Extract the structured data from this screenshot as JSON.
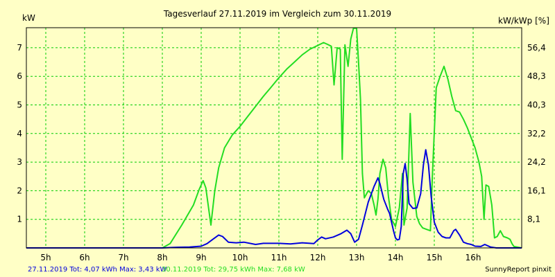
{
  "chart_data": {
    "type": "line",
    "title": "Tagesverlauf 27.11.2019 im Vergleich zum 30.11.2019",
    "ylabel_left": "kW",
    "ylabel_right": "kW/kWp [%]",
    "x_ticks": [
      "5h",
      "6h",
      "7h",
      "8h",
      "9h",
      "10h",
      "11h",
      "12h",
      "13h",
      "14h",
      "15h",
      "16h"
    ],
    "y_left_ticks": [
      "1",
      "2",
      "3",
      "4",
      "5",
      "6",
      "7"
    ],
    "y_right_ticks": [
      "8,1",
      "16,1",
      "24,2",
      "32,2",
      "40,3",
      "48,3",
      "56,4"
    ],
    "xlim": [
      4.5,
      17.25
    ],
    "ylim": [
      0,
      7.7
    ],
    "grid": true,
    "colors": {
      "background": "#ffffc6",
      "grid": "#00cc00",
      "series1": "#0000dd",
      "series2": "#22dd22"
    },
    "series": [
      {
        "name": "27.11.2019",
        "color": "#0000dd",
        "summary": "27.11.2019 Tot: 4,07 kWh Max: 3,43 kW",
        "points": [
          [
            4.5,
            0
          ],
          [
            8.0,
            0
          ],
          [
            8.3,
            0.02
          ],
          [
            8.7,
            0.03
          ],
          [
            9.0,
            0.06
          ],
          [
            9.15,
            0.15
          ],
          [
            9.3,
            0.3
          ],
          [
            9.45,
            0.45
          ],
          [
            9.55,
            0.4
          ],
          [
            9.7,
            0.2
          ],
          [
            9.9,
            0.18
          ],
          [
            10.1,
            0.2
          ],
          [
            10.4,
            0.12
          ],
          [
            10.6,
            0.16
          ],
          [
            11.0,
            0.16
          ],
          [
            11.3,
            0.14
          ],
          [
            11.6,
            0.18
          ],
          [
            11.9,
            0.15
          ],
          [
            12.0,
            0.28
          ],
          [
            12.1,
            0.38
          ],
          [
            12.2,
            0.32
          ],
          [
            12.4,
            0.38
          ],
          [
            12.6,
            0.5
          ],
          [
            12.75,
            0.62
          ],
          [
            12.85,
            0.5
          ],
          [
            12.95,
            0.2
          ],
          [
            13.05,
            0.3
          ],
          [
            13.15,
            0.8
          ],
          [
            13.3,
            1.6
          ],
          [
            13.45,
            2.15
          ],
          [
            13.55,
            2.45
          ],
          [
            13.6,
            2.25
          ],
          [
            13.7,
            1.7
          ],
          [
            13.8,
            1.35
          ],
          [
            13.85,
            1.2
          ],
          [
            13.95,
            0.6
          ],
          [
            14.0,
            0.35
          ],
          [
            14.05,
            0.28
          ],
          [
            14.1,
            0.3
          ],
          [
            14.15,
            0.75
          ],
          [
            14.2,
            2.6
          ],
          [
            14.25,
            2.95
          ],
          [
            14.3,
            2.4
          ],
          [
            14.35,
            1.55
          ],
          [
            14.45,
            1.38
          ],
          [
            14.55,
            1.4
          ],
          [
            14.65,
            1.9
          ],
          [
            14.72,
            2.9
          ],
          [
            14.78,
            3.43
          ],
          [
            14.85,
            2.9
          ],
          [
            14.92,
            1.8
          ],
          [
            15.0,
            0.9
          ],
          [
            15.1,
            0.55
          ],
          [
            15.2,
            0.4
          ],
          [
            15.3,
            0.35
          ],
          [
            15.4,
            0.35
          ],
          [
            15.5,
            0.6
          ],
          [
            15.55,
            0.65
          ],
          [
            15.65,
            0.45
          ],
          [
            15.75,
            0.2
          ],
          [
            15.85,
            0.15
          ],
          [
            15.95,
            0.12
          ],
          [
            16.05,
            0.06
          ],
          [
            16.2,
            0.05
          ],
          [
            16.3,
            0.12
          ],
          [
            16.45,
            0.03
          ],
          [
            16.6,
            0
          ],
          [
            17.25,
            0
          ]
        ]
      },
      {
        "name": "30.11.2019",
        "color": "#22dd22",
        "summary": "30.11.2019 Tot: 29,75 kWh Max: 7,68 kW",
        "points": [
          [
            4.5,
            0
          ],
          [
            8.0,
            0
          ],
          [
            8.2,
            0.15
          ],
          [
            8.5,
            0.8
          ],
          [
            8.8,
            1.5
          ],
          [
            8.95,
            2.05
          ],
          [
            9.05,
            2.35
          ],
          [
            9.12,
            2.1
          ],
          [
            9.25,
            0.8
          ],
          [
            9.35,
            2.0
          ],
          [
            9.45,
            2.8
          ],
          [
            9.6,
            3.5
          ],
          [
            9.8,
            3.95
          ],
          [
            10.0,
            4.25
          ],
          [
            10.2,
            4.6
          ],
          [
            10.4,
            4.95
          ],
          [
            10.6,
            5.3
          ],
          [
            10.8,
            5.62
          ],
          [
            11.0,
            5.95
          ],
          [
            11.2,
            6.25
          ],
          [
            11.4,
            6.5
          ],
          [
            11.6,
            6.75
          ],
          [
            11.8,
            6.95
          ],
          [
            12.0,
            7.08
          ],
          [
            12.15,
            7.18
          ],
          [
            12.25,
            7.12
          ],
          [
            12.35,
            7.05
          ],
          [
            12.42,
            5.7
          ],
          [
            12.5,
            7.0
          ],
          [
            12.58,
            6.95
          ],
          [
            12.63,
            3.1
          ],
          [
            12.7,
            7.1
          ],
          [
            12.78,
            6.35
          ],
          [
            12.85,
            7.3
          ],
          [
            12.92,
            7.68
          ],
          [
            13.0,
            7.68
          ],
          [
            13.05,
            6.5
          ],
          [
            13.1,
            5.2
          ],
          [
            13.15,
            2.6
          ],
          [
            13.2,
            1.75
          ],
          [
            13.3,
            2.0
          ],
          [
            13.38,
            1.9
          ],
          [
            13.45,
            1.5
          ],
          [
            13.5,
            1.15
          ],
          [
            13.55,
            1.7
          ],
          [
            13.6,
            2.6
          ],
          [
            13.68,
            3.1
          ],
          [
            13.75,
            2.8
          ],
          [
            13.82,
            1.8
          ],
          [
            13.9,
            1.0
          ],
          [
            14.0,
            0.75
          ],
          [
            14.1,
            1.4
          ],
          [
            14.18,
            2.6
          ],
          [
            14.22,
            0.8
          ],
          [
            14.3,
            1.4
          ],
          [
            14.38,
            4.7
          ],
          [
            14.45,
            2.3
          ],
          [
            14.55,
            1.1
          ],
          [
            14.62,
            0.85
          ],
          [
            14.7,
            0.7
          ],
          [
            14.8,
            0.65
          ],
          [
            14.9,
            0.6
          ],
          [
            14.95,
            2.5
          ],
          [
            15.05,
            5.6
          ],
          [
            15.15,
            6.0
          ],
          [
            15.25,
            6.35
          ],
          [
            15.35,
            5.9
          ],
          [
            15.45,
            5.3
          ],
          [
            15.55,
            4.8
          ],
          [
            15.65,
            4.75
          ],
          [
            15.75,
            4.5
          ],
          [
            15.85,
            4.2
          ],
          [
            15.95,
            3.85
          ],
          [
            16.05,
            3.5
          ],
          [
            16.15,
            3.0
          ],
          [
            16.22,
            2.5
          ],
          [
            16.28,
            1.0
          ],
          [
            16.33,
            2.2
          ],
          [
            16.4,
            2.15
          ],
          [
            16.48,
            1.5
          ],
          [
            16.55,
            0.35
          ],
          [
            16.62,
            0.4
          ],
          [
            16.7,
            0.6
          ],
          [
            16.78,
            0.4
          ],
          [
            16.88,
            0.35
          ],
          [
            16.95,
            0.3
          ],
          [
            17.0,
            0.15
          ],
          [
            17.05,
            0.05
          ],
          [
            17.25,
            0
          ]
        ]
      }
    ],
    "credit": "SunnyReport pinxit"
  }
}
